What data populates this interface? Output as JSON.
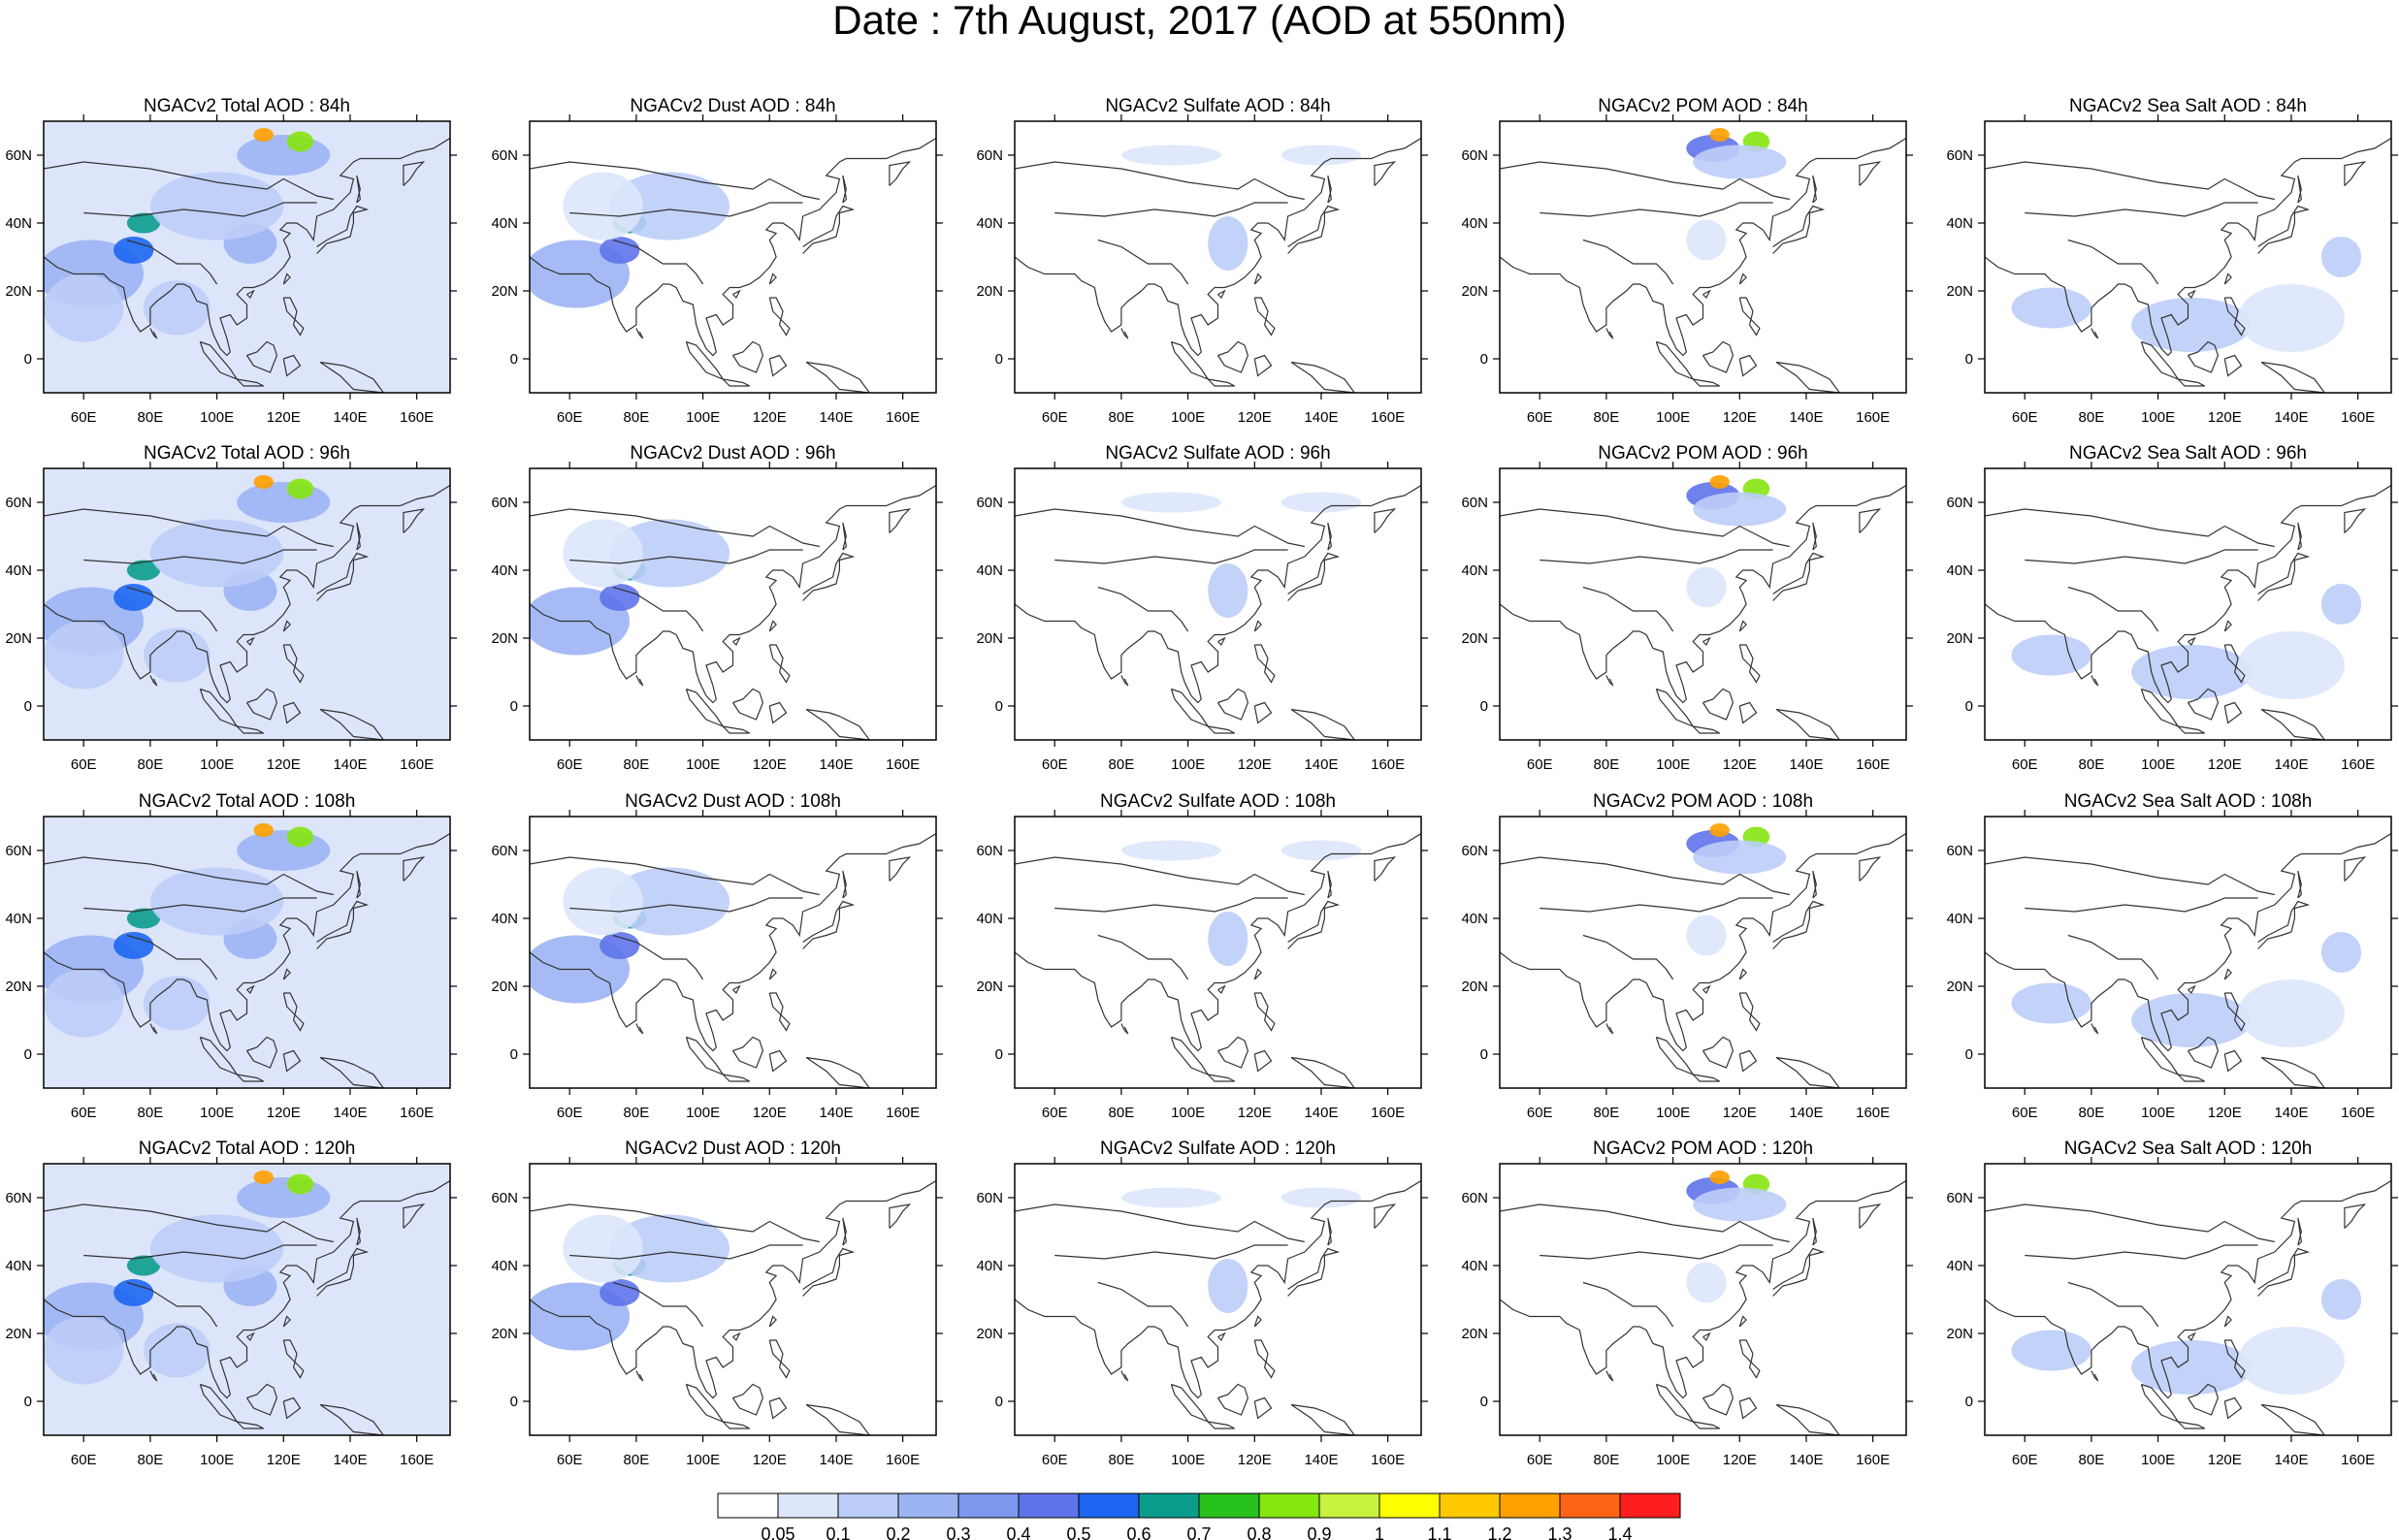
{
  "title": "Date : 7th August, 2017 (AOD at 550nm)",
  "map": {
    "lon_range": [
      48,
      170
    ],
    "lat_range": [
      -10,
      70
    ],
    "lon_ticks": [
      "60E",
      "80E",
      "100E",
      "120E",
      "140E",
      "160E"
    ],
    "lat_ticks": [
      "60N",
      "40N",
      "20N",
      "0"
    ],
    "panels": [
      [
        "NGACv2 Total AOD : 84h",
        "NGACv2 Dust AOD : 84h",
        "NGACv2 Sulfate AOD : 84h",
        "NGACv2 POM AOD : 84h",
        "NGACv2 Sea Salt AOD : 84h"
      ],
      [
        "NGACv2 Total AOD : 96h",
        "NGACv2 Dust AOD : 96h",
        "NGACv2 Sulfate AOD : 96h",
        "NGACv2 POM AOD : 96h",
        "NGACv2 Sea Salt AOD : 96h"
      ],
      [
        "NGACv2 Total AOD : 108h",
        "NGACv2 Dust AOD : 108h",
        "NGACv2 Sulfate AOD : 108h",
        "NGACv2 POM AOD : 108h",
        "NGACv2 Sea Salt AOD : 108h"
      ],
      [
        "NGACv2 Total AOD : 120h",
        "NGACv2 Dust AOD : 120h",
        "NGACv2 Sulfate AOD : 120h",
        "NGACv2 POM AOD : 120h",
        "NGACv2 Sea Salt  AOD : 120h"
      ]
    ]
  },
  "colorbar": {
    "labels": [
      "0.05",
      "0.1",
      "0.2",
      "0.3",
      "0.4",
      "0.5",
      "0.6",
      "0.7",
      "0.8",
      "0.9",
      "1",
      "1.1",
      "1.2",
      "1.3",
      "1.4"
    ],
    "colors": [
      "#ffffff",
      "#dde5fb",
      "#bccdf8",
      "#9cb4f4",
      "#7d99ef",
      "#5e73ea",
      "#1d66f2",
      "#0b9c8c",
      "#28c21c",
      "#86e60f",
      "#c9f23f",
      "#ffff00",
      "#ffc800",
      "#ffa000",
      "#ff6414",
      "#ff1e1e"
    ]
  }
}
